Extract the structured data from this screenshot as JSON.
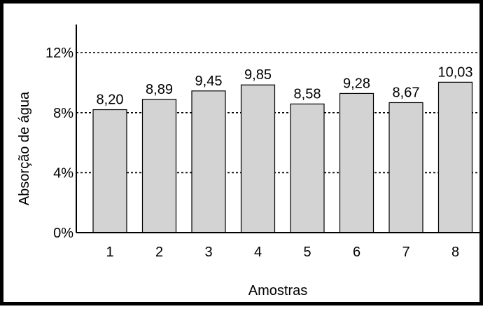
{
  "chart_data": {
    "type": "bar",
    "categories": [
      "1",
      "2",
      "3",
      "4",
      "5",
      "6",
      "7",
      "8"
    ],
    "values": [
      8.2,
      8.89,
      9.45,
      9.85,
      8.58,
      9.28,
      8.67,
      10.03
    ],
    "value_labels": [
      "8,20",
      "8,89",
      "9,45",
      "9,85",
      "8,58",
      "9,28",
      "8,67",
      "10,03"
    ],
    "title": "",
    "xlabel": "Amostras",
    "ylabel": "Absorção de água",
    "ylim": [
      0,
      14
    ],
    "yticks": [
      0,
      4,
      8,
      12
    ],
    "ytick_labels": [
      "0%",
      "4%",
      "8%",
      "12%"
    ],
    "grid": "dotted horizontal at 4%, 8%, 12%",
    "bar_color": "#d3d3d3",
    "bar_edge_color": "#000000"
  }
}
